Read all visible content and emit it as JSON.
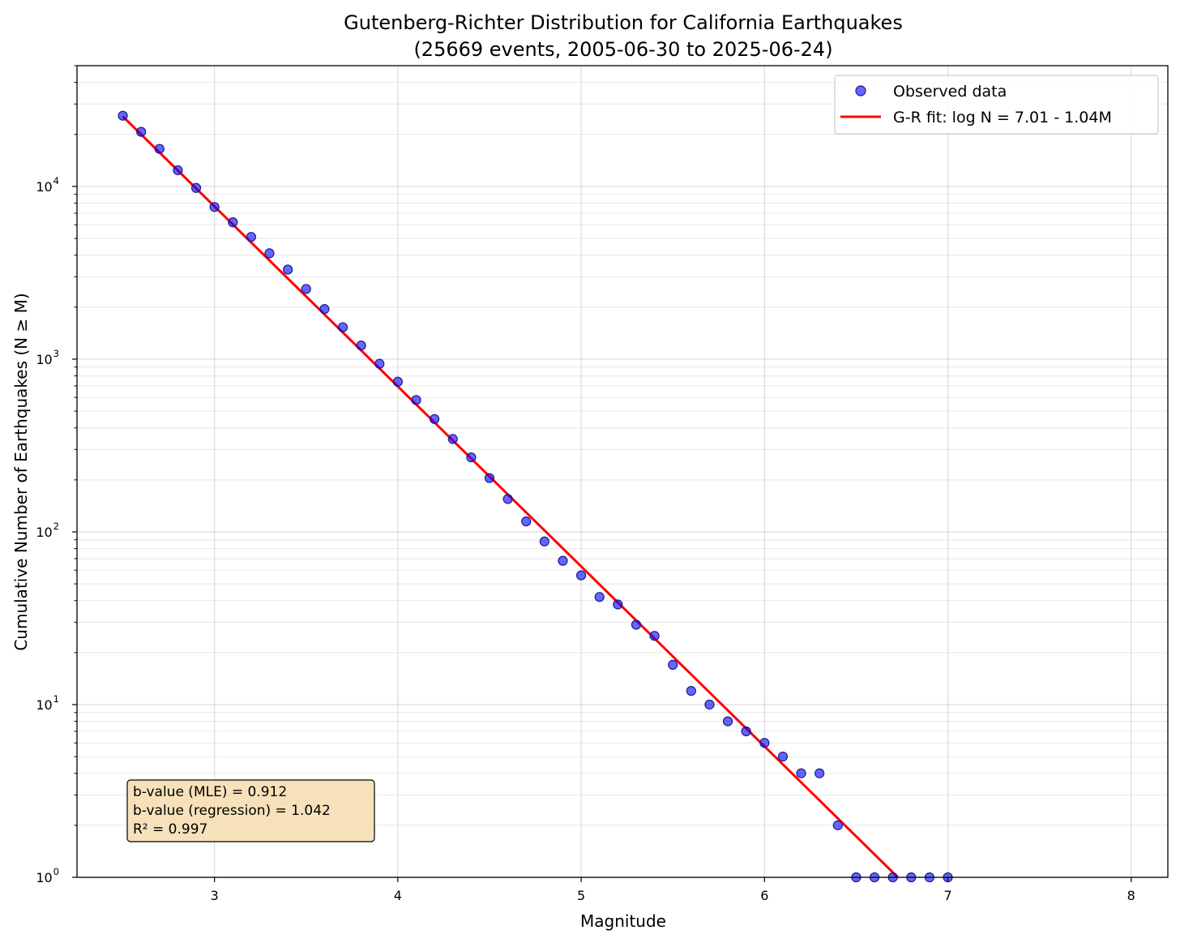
{
  "chart_data": {
    "type": "scatter",
    "title": "Gutenberg-Richter Distribution for California Earthquakes",
    "subtitle": "(25669 events, 2005-06-30 to 2025-06-24)",
    "xlabel": "Magnitude",
    "ylabel": "Cumulative Number of Earthquakes (N ≥ M)",
    "xlim": [
      2.25,
      8.2
    ],
    "ylim": [
      1,
      50000
    ],
    "yscale": "log",
    "x_ticks": [
      "3",
      "4",
      "5",
      "6",
      "7",
      "8"
    ],
    "y_ticks": [
      {
        "base": "10",
        "exp": "0"
      },
      {
        "base": "10",
        "exp": "1"
      },
      {
        "base": "10",
        "exp": "2"
      },
      {
        "base": "10",
        "exp": "3"
      },
      {
        "base": "10",
        "exp": "4"
      }
    ],
    "grid": true,
    "legend_position": "top-right",
    "series": [
      {
        "name": "Observed data",
        "kind": "scatter",
        "color": "#0000ff",
        "x": [
          2.5,
          2.6,
          2.7,
          2.8,
          2.9,
          3.0,
          3.1,
          3.2,
          3.3,
          3.4,
          3.5,
          3.6,
          3.7,
          3.8,
          3.9,
          4.0,
          4.1,
          4.2,
          4.3,
          4.4,
          4.5,
          4.6,
          4.7,
          4.8,
          4.9,
          5.0,
          5.1,
          5.2,
          5.3,
          5.4,
          5.5,
          5.6,
          5.7,
          5.8,
          5.9,
          6.0,
          6.1,
          6.2,
          6.3,
          6.4,
          6.5,
          6.6,
          6.7,
          6.8,
          6.9,
          7.0
        ],
        "y": [
          25669,
          20700,
          16500,
          12400,
          9800,
          7600,
          6200,
          5100,
          4100,
          3300,
          2550,
          1950,
          1530,
          1200,
          940,
          740,
          580,
          450,
          345,
          270,
          205,
          155,
          115,
          88,
          68,
          56,
          42,
          38,
          29,
          25,
          17,
          12,
          10,
          8,
          7,
          6,
          5,
          4,
          4,
          2,
          1,
          1,
          1,
          1,
          1,
          1
        ]
      },
      {
        "name": "G-R fit: log N = 7.01 - 1.04M",
        "kind": "line",
        "color": "#ff0000",
        "intercept": 7.01,
        "slope": -1.042,
        "x_range": [
          2.5,
          7.0
        ]
      }
    ],
    "annotation": [
      "b-value (MLE) = 0.912",
      "b-value (regression) = 1.042",
      "R² = 0.997"
    ]
  }
}
